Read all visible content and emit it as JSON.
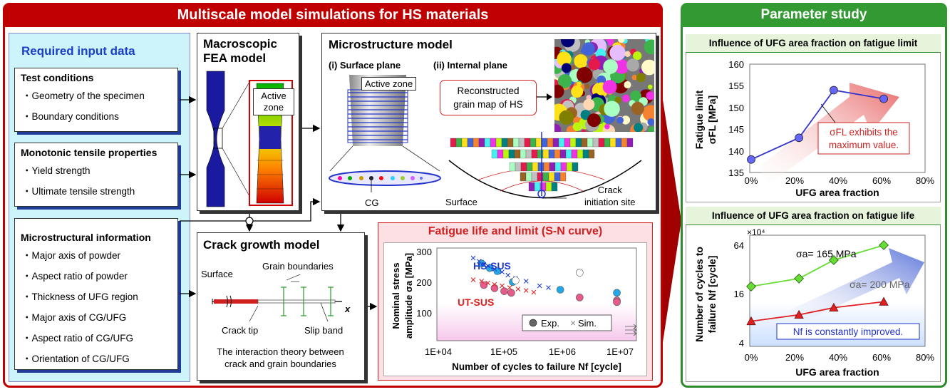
{
  "left_header": "Multiscale model simulations for HS materials",
  "right_header": "Parameter study",
  "input": {
    "title": "Required input data",
    "groups": [
      {
        "title": "Test conditions",
        "items": [
          "・Geometry of the specimen",
          "・Boundary conditions"
        ]
      },
      {
        "title": "Monotonic tensile properties",
        "items": [
          "・Yield strength",
          "・Ultimate tensile strength"
        ]
      },
      {
        "title": "Microstructural information",
        "items": [
          "・Major axis of  powder",
          "・Aspect ratio of  powder",
          "・Thickness of UFG region",
          "・Major axis of CG/UFG",
          "・Aspect ratio of  CG/UFG",
          "・Orientation of CG/UFG"
        ]
      }
    ]
  },
  "fea": {
    "title_line1": "Macroscopic",
    "title_line2": "FEA model",
    "active_zone_line1": "Active",
    "active_zone_line2": "zone"
  },
  "micro": {
    "title": "Microstructure model",
    "surface_plane": "(i) Surface plane",
    "internal_plane": "(ii) Internal plane",
    "active_zone": "Active zone",
    "reconstructed_line1": "Reconstructed",
    "reconstructed_line2": "grain map of HS",
    "cg": "CG",
    "surface": "Surface",
    "crack_line1": "Crack",
    "crack_line2": "initiation site"
  },
  "crack": {
    "title": "Crack growth model",
    "surface": "Surface",
    "grain_boundaries": "Grain boundaries",
    "x_label": "x",
    "crack_tip": "Crack tip",
    "slip_band": "Slip band",
    "desc_line1": "The interaction theory between",
    "desc_line2": "crack and grain boundaries"
  },
  "sn": {
    "title": "Fatigue life and limit (S-N curve)",
    "ylabel_line1": "Nominal stress",
    "ylabel_line2": "amplitude σa [MPa]",
    "xlabel": "Number of cycles to failure Nf [cycle]",
    "hs_label": "HS-SUS",
    "ut_label": "UT-SUS",
    "legend_exp": "Exp.",
    "legend_sim": "Sim.",
    "y_ticks": [
      "300",
      "200",
      "100"
    ],
    "x_ticks": [
      "1E+04",
      "1E+05",
      "1E+06",
      "1E+07"
    ]
  },
  "fl_plot": {
    "title": "Influence of UFG area fraction on fatigue limit",
    "ylabel_line1": "Fatigue limit",
    "ylabel_line2": "σFL [MPa]",
    "xlabel": "UFG area fraction",
    "y_ticks": [
      "160",
      "155",
      "150",
      "145",
      "140",
      "135"
    ],
    "x_ticks": [
      "0%",
      "20%",
      "40%",
      "60%",
      "80%"
    ],
    "annotation_line1": "σFL exhibits the",
    "annotation_line2": "maximum value."
  },
  "life_plot": {
    "title": "Influence of UFG area fraction on fatigue life",
    "ylabel_line1": "Number of cycles to",
    "ylabel_line2": "failure Nf [cycle]",
    "xlabel": "UFG area fraction",
    "multiplier": "×10⁴",
    "y_ticks": [
      "64",
      "16",
      "4"
    ],
    "x_ticks": [
      "0%",
      "20%",
      "40%",
      "60%",
      "80%"
    ],
    "series1_label": "σa= 165 MPa",
    "series2_label": "σa= 200 MPa",
    "annotation": "Nf is constantly improved."
  },
  "chart_data": [
    {
      "type": "scatter",
      "title": "Fatigue life and limit (S-N curve)",
      "xlabel": "Number of cycles to failure Nf [cycle]",
      "ylabel": "Nominal stress amplitude σa [MPa]",
      "xscale": "log",
      "xlim": [
        10000,
        20000000
      ],
      "ylim": [
        0,
        300
      ],
      "series": [
        {
          "name": "HS-SUS",
          "kind": "Exp.",
          "color": "#22a8e8",
          "x": [
            55000,
            75000,
            100000,
            180000,
            1100000,
            9500000
          ],
          "y": [
            250,
            235,
            225,
            190,
            165,
            155
          ]
        },
        {
          "name": "HS-SUS",
          "kind": "Sim.",
          "color": "#1f3ccf",
          "x": [
            40000,
            50000,
            60000,
            70000,
            90000,
            120000,
            150000,
            200000,
            300000,
            500000,
            700000
          ],
          "y": [
            265,
            255,
            245,
            240,
            230,
            220,
            210,
            200,
            190,
            175,
            170
          ]
        },
        {
          "name": "UT-SUS",
          "kind": "Exp.",
          "color": "#e85a8a",
          "x": [
            60000,
            90000,
            130000,
            170000,
            2300000,
            9500000,
            9500000
          ],
          "y": [
            180,
            170,
            160,
            155,
            140,
            130,
            125
          ]
        },
        {
          "name": "UT-SUS",
          "kind": "Sim.",
          "color": "#e02020",
          "x": [
            40000,
            55000,
            70000,
            90000,
            120000,
            160000,
            220000,
            300000,
            400000
          ],
          "y": [
            195,
            190,
            185,
            180,
            175,
            170,
            165,
            160,
            155
          ]
        },
        {
          "name": "",
          "kind": "Exp.",
          "color": "#ffffff",
          "x": [
            2300000,
            200000
          ],
          "y": [
            220,
            195
          ]
        }
      ]
    },
    {
      "type": "line",
      "title": "Influence of UFG area fraction on fatigue limit",
      "xlabel": "UFG area fraction",
      "ylabel": "Fatigue limit σFL [MPa]",
      "xlim": [
        0,
        80
      ],
      "ylim": [
        135,
        160
      ],
      "series": [
        {
          "name": "",
          "color": "#3333cc",
          "x": [
            0,
            22,
            38,
            61
          ],
          "y": [
            138,
            143,
            154,
            152
          ]
        }
      ]
    },
    {
      "type": "line",
      "title": "Influence of UFG area fraction on fatigue life",
      "xlabel": "UFG area fraction",
      "ylabel": "Number of cycles to failure Nf [cycle]",
      "yscale": "log2",
      "multiplier": "×10⁴",
      "xlim": [
        0,
        80
      ],
      "ylim": [
        4,
        64
      ],
      "series": [
        {
          "name": "σa= 165 MPa",
          "color": "#66dd33",
          "x": [
            0,
            22,
            38,
            61
          ],
          "y": [
            20,
            25,
            42,
            64
          ]
        },
        {
          "name": "σa= 200 MPa",
          "color": "#e02020",
          "x": [
            0,
            22,
            38,
            61
          ],
          "y": [
            7.5,
            9,
            11,
            13
          ]
        }
      ]
    }
  ]
}
